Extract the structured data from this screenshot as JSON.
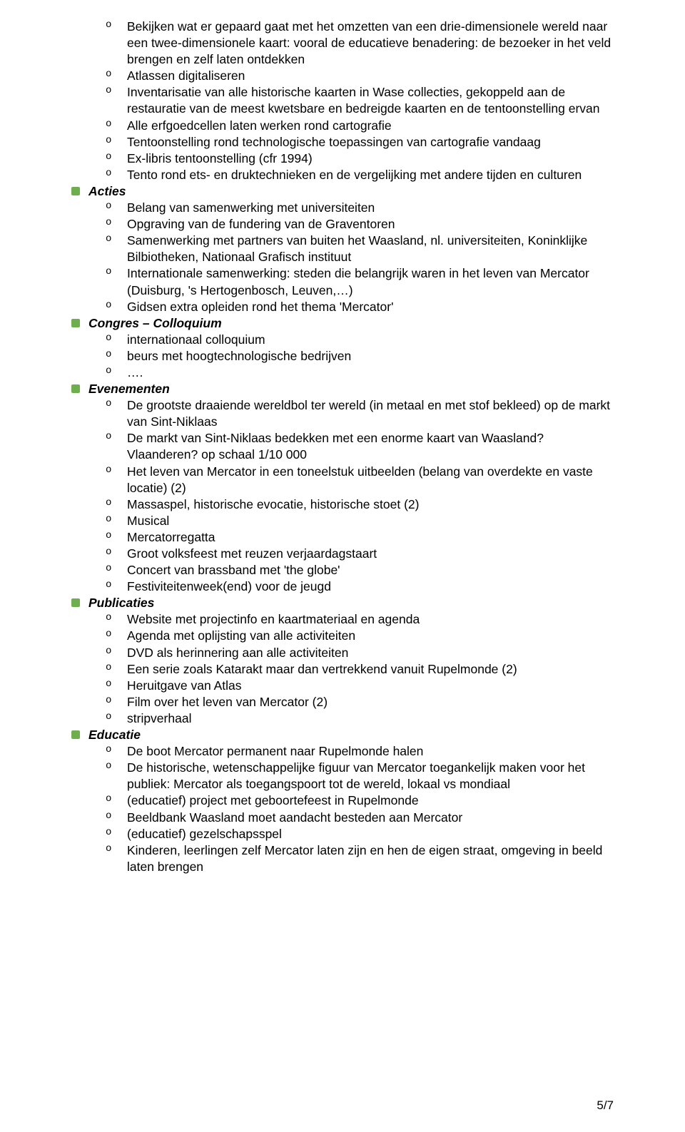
{
  "intro_items": [
    "Bekijken wat er gepaard gaat met het omzetten van een drie-dimensionele wereld naar een twee-dimensionele kaart: vooral de educatieve benadering: de bezoeker in het veld brengen en zelf laten ontdekken",
    "Atlassen digitaliseren",
    "Inventarisatie van alle historische kaarten in Wase collecties, gekoppeld aan de restauratie van de meest kwetsbare en bedreigde kaarten en de tentoonstelling ervan",
    "Alle erfgoedcellen laten werken rond cartografie",
    "Tentoonstelling rond technologische toepassingen van cartografie vandaag",
    "Ex-libris tentoonstelling (cfr 1994)",
    "Tento rond ets- en druktechnieken en de vergelijking met andere tijden en culturen"
  ],
  "sections": [
    {
      "title": "Acties",
      "items": [
        "Belang van samenwerking met universiteiten",
        "Opgraving van de fundering van de Graventoren",
        "Samenwerking met partners van buiten het Waasland, nl. universiteiten, Koninklijke Bilbiotheken, Nationaal Grafisch instituut",
        "Internationale samenwerking: steden die belangrijk waren in het leven van Mercator (Duisburg, 's Hertogenbosch, Leuven,…)",
        "Gidsen extra opleiden rond het thema 'Mercator'"
      ]
    },
    {
      "title": "Congres – Colloquium",
      "items": [
        "internationaal colloquium",
        "beurs met hoogtechnologische bedrijven",
        "…."
      ]
    },
    {
      "title": "Evenementen",
      "items": [
        "De grootste draaiende wereldbol ter wereld (in metaal en met stof bekleed) op de markt van Sint-Niklaas",
        "De markt van Sint-Niklaas bedekken met een enorme kaart van Waasland? Vlaanderen? op schaal 1/10 000",
        "Het leven van Mercator in een toneelstuk uitbeelden (belang van overdekte en vaste locatie) (2)",
        "Massaspel, historische evocatie, historische stoet (2)",
        "Musical",
        "Mercatorregatta",
        "Groot volksfeest met reuzen verjaardagstaart",
        "Concert van brassband met 'the globe'",
        "Festiviteitenweek(end) voor de jeugd"
      ]
    },
    {
      "title": "Publicaties",
      "items": [
        "Website met projectinfo en kaartmateriaal en agenda",
        "Agenda met oplijsting van alle activiteiten",
        "DVD als herinnering aan alle activiteiten",
        "Een serie zoals Katarakt maar dan vertrekkend vanuit Rupelmonde (2)",
        "Heruitgave van Atlas",
        "Film over het leven van Mercator (2)",
        "stripverhaal"
      ]
    },
    {
      "title": "Educatie",
      "items": [
        "De boot Mercator permanent naar Rupelmonde halen",
        "De historische, wetenschappelijke figuur van Mercator toegankelijk maken voor het publiek: Mercator als toegangspoort tot de wereld, lokaal vs mondiaal",
        "(educatief) project met geboortefeest in Rupelmonde",
        "Beeldbank Waasland moet aandacht besteden aan Mercator",
        "(educatief) gezelschapsspel",
        "Kinderen, leerlingen zelf Mercator laten zijn en hen de eigen straat, omgeving in beeld laten brengen"
      ]
    }
  ],
  "page_number": "5/7"
}
